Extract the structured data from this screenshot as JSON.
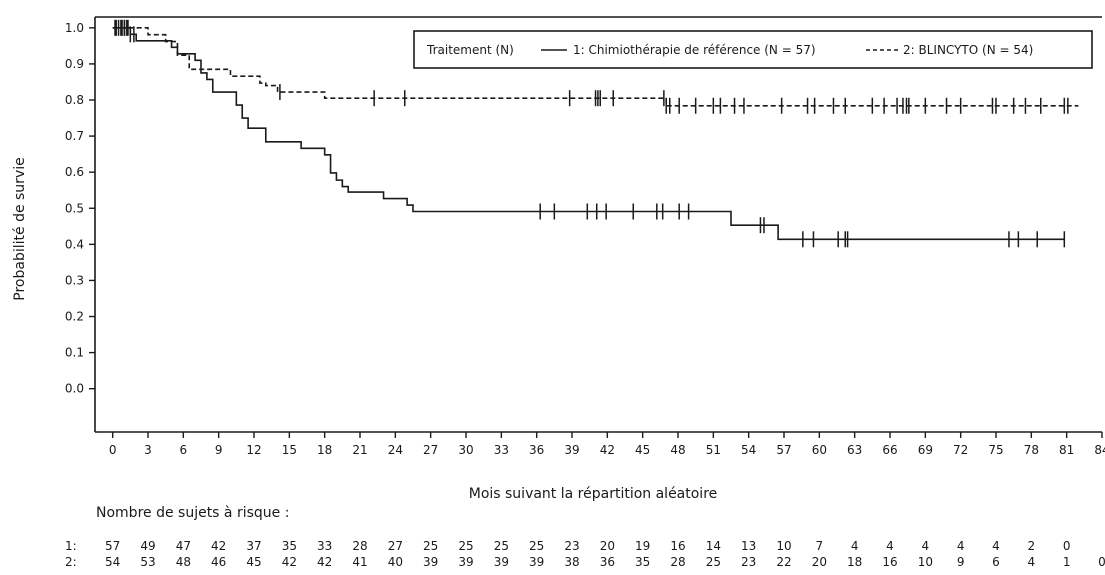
{
  "chart_data": {
    "type": "line",
    "title": "",
    "xlabel": "Mois suivant la répartition aléatoire",
    "ylabel": "Probabilité de survie",
    "xlim": [
      -1.5,
      84
    ],
    "ylim": [
      -0.12,
      1.03
    ],
    "x_ticks": [
      0,
      3,
      6,
      9,
      12,
      15,
      18,
      21,
      24,
      27,
      30,
      33,
      36,
      39,
      42,
      45,
      48,
      51,
      54,
      57,
      60,
      63,
      66,
      69,
      72,
      75,
      78,
      81,
      84
    ],
    "y_ticks": [
      "1.0",
      "0.9",
      "0.8",
      "0.7",
      "0.6",
      "0.5",
      "0.4",
      "0.3",
      "0.2",
      "0.1",
      "0.0"
    ],
    "y_tick_values": [
      1.0,
      0.9,
      0.8,
      0.7,
      0.6,
      0.5,
      0.4,
      0.3,
      0.2,
      0.1,
      0.0
    ],
    "grid": false,
    "legend": {
      "placement": "top-right",
      "title": "Traitement (N)",
      "entries": [
        "1: Chimiothérapie de référence (N = 57)",
        "2: BLINCYTO (N = 54)"
      ]
    },
    "series": [
      {
        "name": "1: Chimiothérapie de référence (N = 57)",
        "style": "solid",
        "steps": [
          [
            0,
            1.0
          ],
          [
            1.5,
            0.982
          ],
          [
            2,
            0.964
          ],
          [
            5,
            0.946
          ],
          [
            5.5,
            0.928
          ],
          [
            7,
            0.91
          ],
          [
            7.5,
            0.875
          ],
          [
            8,
            0.857
          ],
          [
            8.5,
            0.822
          ],
          [
            10.5,
            0.786
          ],
          [
            11,
            0.75
          ],
          [
            11.5,
            0.722
          ],
          [
            13,
            0.684
          ],
          [
            16,
            0.666
          ],
          [
            18,
            0.648
          ],
          [
            18.5,
            0.598
          ],
          [
            19,
            0.578
          ],
          [
            19.5,
            0.56
          ],
          [
            20,
            0.545
          ],
          [
            23,
            0.527
          ],
          [
            25,
            0.509
          ],
          [
            25.5,
            0.491
          ],
          [
            52.5,
            0.453
          ],
          [
            56.5,
            0.414
          ],
          [
            80.8,
            0.414
          ]
        ],
        "censor": [
          0.2,
          0.5,
          0.8,
          1.0,
          1.2,
          1.5,
          1.8,
          36.3,
          37.5,
          40.3,
          41.1,
          41.9,
          44.2,
          46.2,
          46.7,
          48.1,
          48.9,
          55.0,
          55.3,
          58.6,
          59.5,
          61.6,
          62.2,
          62.4,
          76.1,
          76.9,
          78.5,
          80.8
        ]
      },
      {
        "name": "2: BLINCYTO (N = 54)",
        "style": "dashed",
        "steps": [
          [
            0,
            1.0
          ],
          [
            3,
            0.981
          ],
          [
            4.5,
            0.962
          ],
          [
            5.5,
            0.924
          ],
          [
            6.5,
            0.885
          ],
          [
            10,
            0.866
          ],
          [
            12.5,
            0.847
          ],
          [
            13,
            0.84
          ],
          [
            14,
            0.822
          ],
          [
            18,
            0.805
          ],
          [
            47,
            0.784
          ],
          [
            82,
            0.784
          ]
        ],
        "censor": [
          0.3,
          0.7,
          1.0,
          1.3,
          14.2,
          22.2,
          24.8,
          38.8,
          41.0,
          41.2,
          41.4,
          42.5,
          46.8,
          47.0,
          47.3,
          48.1,
          49.5,
          51.0,
          51.6,
          52.8,
          53.6,
          56.8,
          59.0,
          59.6,
          61.2,
          62.2,
          64.5,
          65.5,
          66.6,
          67.1,
          67.4,
          67.6,
          69.0,
          70.8,
          72.0,
          74.7,
          75.0,
          76.5,
          77.5,
          78.8,
          80.8,
          81.1
        ]
      }
    ],
    "risk_table": {
      "title": "Nombre de sujets à risque :",
      "rows": [
        {
          "label": "1:",
          "values": [
            "57",
            "49",
            "47",
            "42",
            "37",
            "35",
            "33",
            "28",
            "27",
            "25",
            "25",
            "25",
            "25",
            "23",
            "20",
            "19",
            "16",
            "14",
            "13",
            "10",
            "7",
            "4",
            "4",
            "4",
            "4",
            "4",
            "2",
            "0"
          ]
        },
        {
          "label": "2:",
          "values": [
            "54",
            "53",
            "48",
            "46",
            "45",
            "42",
            "42",
            "41",
            "40",
            "39",
            "39",
            "39",
            "39",
            "38",
            "36",
            "35",
            "28",
            "25",
            "23",
            "22",
            "20",
            "18",
            "16",
            "10",
            "9",
            "6",
            "4",
            "1",
            "0"
          ]
        }
      ]
    }
  }
}
